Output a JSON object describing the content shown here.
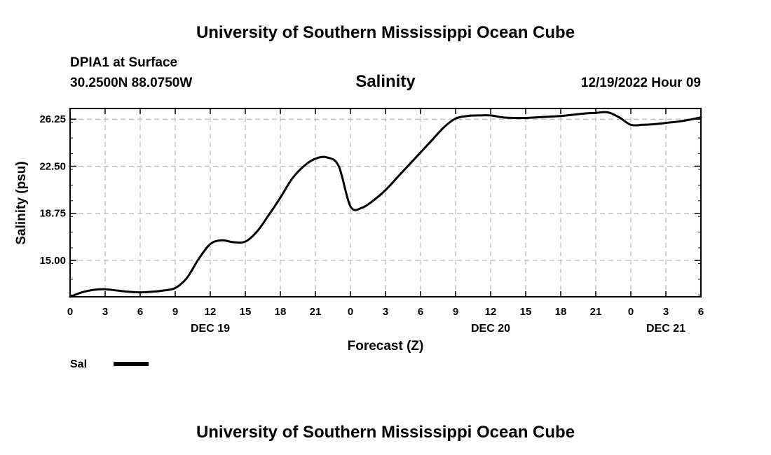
{
  "header": {
    "title_top": "University of Southern Mississippi Ocean Cube",
    "station": "DPIA1 at Surface",
    "coords": "30.2500N  88.0750W",
    "timestamp": "12/19/2022 Hour 09",
    "title_bottom": "University of Southern Mississippi Ocean Cube"
  },
  "chart_data": {
    "type": "line",
    "title": "Salinity",
    "xlabel": "Forecast (Z)",
    "ylabel": "Salinity (psu)",
    "xlim": [
      0,
      54
    ],
    "ylim": [
      12.1,
      27.1
    ],
    "yticks": [
      15.0,
      18.75,
      22.5,
      26.25
    ],
    "ytick_labels": [
      "15.00",
      "18.75",
      "22.50",
      "26.25"
    ],
    "xticks": [
      0,
      3,
      6,
      9,
      12,
      15,
      18,
      21,
      24,
      27,
      30,
      33,
      36,
      39,
      42,
      45,
      48,
      51,
      54
    ],
    "xtick_labels": [
      "0",
      "3",
      "6",
      "9",
      "12",
      "15",
      "18",
      "21",
      "0",
      "3",
      "6",
      "9",
      "12",
      "15",
      "18",
      "21",
      "0",
      "3",
      "6"
    ],
    "day_labels": [
      {
        "hour": 12,
        "label": "DEC 19"
      },
      {
        "hour": 36,
        "label": "DEC 20"
      },
      {
        "hour": 51,
        "label": "DEC 21"
      }
    ],
    "grid": true,
    "legend": {
      "position": "bottom-left",
      "entries": [
        "Sal"
      ]
    },
    "series": [
      {
        "name": "Sal",
        "x": [
          0,
          1,
          2,
          3,
          4,
          5,
          6,
          7,
          8,
          9,
          10,
          11,
          12,
          13,
          14,
          15,
          16,
          17,
          18,
          19,
          20,
          21,
          22,
          23,
          24,
          25,
          26,
          27,
          28,
          29,
          30,
          31,
          32,
          33,
          34,
          35,
          36,
          37,
          38,
          39,
          40,
          41,
          42,
          43,
          44,
          45,
          46,
          47,
          48,
          49,
          50,
          51,
          52,
          53,
          54
        ],
        "values": [
          12.1,
          12.45,
          12.65,
          12.7,
          12.6,
          12.5,
          12.45,
          12.5,
          12.6,
          12.8,
          13.6,
          15.1,
          16.3,
          16.6,
          16.45,
          16.5,
          17.3,
          18.6,
          20.0,
          21.5,
          22.5,
          23.1,
          23.2,
          22.5,
          19.3,
          19.2,
          19.8,
          20.6,
          21.6,
          22.6,
          23.6,
          24.6,
          25.6,
          26.3,
          26.5,
          26.55,
          26.55,
          26.4,
          26.35,
          26.35,
          26.4,
          26.45,
          26.5,
          26.6,
          26.7,
          26.75,
          26.8,
          26.4,
          25.8,
          25.8,
          25.85,
          25.95,
          26.05,
          26.2,
          26.4
        ]
      }
    ]
  }
}
